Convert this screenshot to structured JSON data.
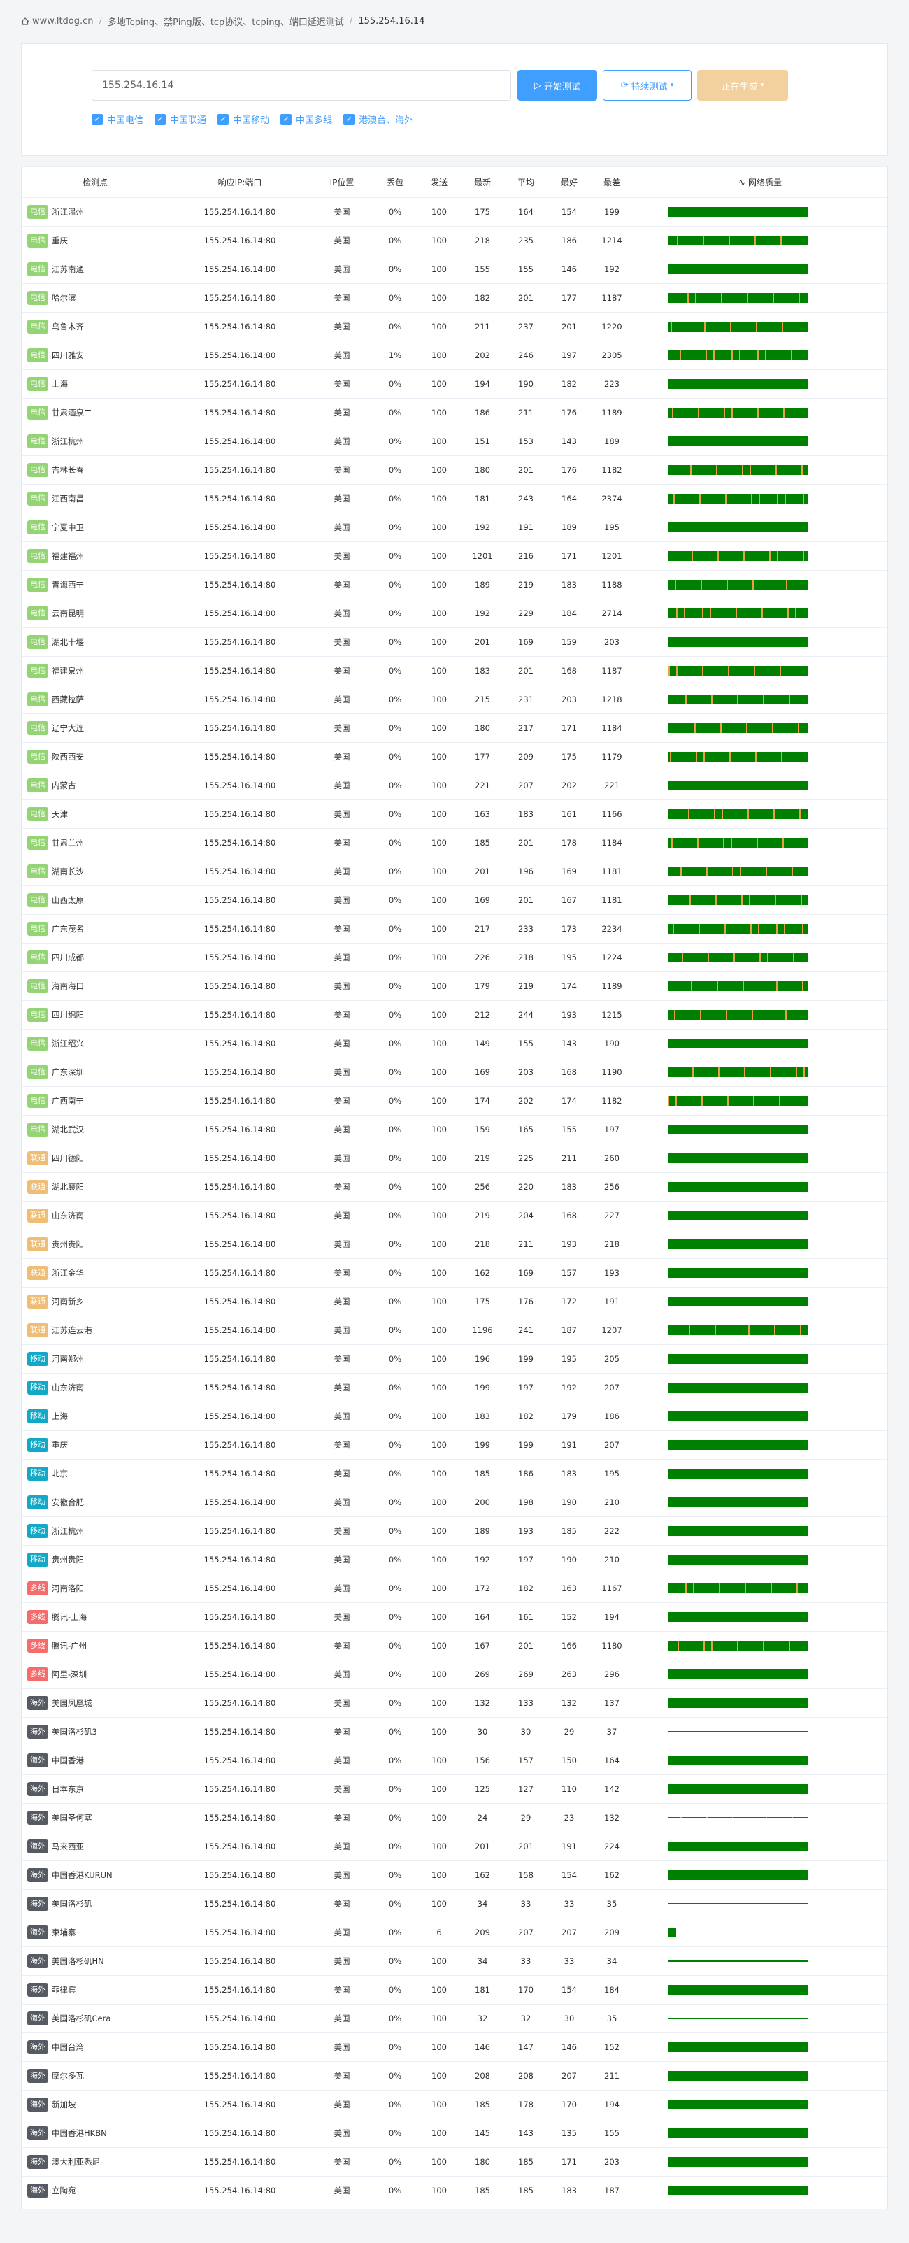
{
  "breadcrumb": {
    "site": "www.ltdog.cn",
    "section": "多地Tcping、禁Ping版、tcp协议、tcping、端口延迟测试",
    "target": "155.254.16.14"
  },
  "form": {
    "ip_value": "155.254.16.14",
    "start_label": "开始测试",
    "continuous_label": "持续测试",
    "generating_label": "正在生成",
    "checkboxes": [
      "中国电信",
      "中国联通",
      "中国移动",
      "中国多线",
      "港澳台、海外"
    ]
  },
  "table": {
    "headers": [
      "检测点",
      "响应IP:端口",
      "IP位置",
      "丢包",
      "发送",
      "最新",
      "平均",
      "最好",
      "最差",
      "网络质量"
    ],
    "rows": [
      [
        "电信",
        "浙江温州",
        "155.254.16.14:80",
        "美国",
        "0%",
        "100",
        "175",
        "164",
        "154",
        "199"
      ],
      [
        "电信",
        "重庆",
        "155.254.16.14:80",
        "美国",
        "0%",
        "100",
        "218",
        "235",
        "186",
        "1214"
      ],
      [
        "电信",
        "江苏南通",
        "155.254.16.14:80",
        "美国",
        "0%",
        "100",
        "155",
        "155",
        "146",
        "192"
      ],
      [
        "电信",
        "哈尔滨",
        "155.254.16.14:80",
        "美国",
        "0%",
        "100",
        "182",
        "201",
        "177",
        "1187"
      ],
      [
        "电信",
        "乌鲁木齐",
        "155.254.16.14:80",
        "美国",
        "0%",
        "100",
        "211",
        "237",
        "201",
        "1220"
      ],
      [
        "电信",
        "四川雅安",
        "155.254.16.14:80",
        "美国",
        "1%",
        "100",
        "202",
        "246",
        "197",
        "2305"
      ],
      [
        "电信",
        "上海",
        "155.254.16.14:80",
        "美国",
        "0%",
        "100",
        "194",
        "190",
        "182",
        "223"
      ],
      [
        "电信",
        "甘肃酒泉二",
        "155.254.16.14:80",
        "美国",
        "0%",
        "100",
        "186",
        "211",
        "176",
        "1189"
      ],
      [
        "电信",
        "浙江杭州",
        "155.254.16.14:80",
        "美国",
        "0%",
        "100",
        "151",
        "153",
        "143",
        "189"
      ],
      [
        "电信",
        "吉林长春",
        "155.254.16.14:80",
        "美国",
        "0%",
        "100",
        "180",
        "201",
        "176",
        "1182"
      ],
      [
        "电信",
        "江西南昌",
        "155.254.16.14:80",
        "美国",
        "0%",
        "100",
        "181",
        "243",
        "164",
        "2374"
      ],
      [
        "电信",
        "宁夏中卫",
        "155.254.16.14:80",
        "美国",
        "0%",
        "100",
        "192",
        "191",
        "189",
        "195"
      ],
      [
        "电信",
        "福建福州",
        "155.254.16.14:80",
        "美国",
        "0%",
        "100",
        "1201",
        "216",
        "171",
        "1201"
      ],
      [
        "电信",
        "青海西宁",
        "155.254.16.14:80",
        "美国",
        "0%",
        "100",
        "189",
        "219",
        "183",
        "1188"
      ],
      [
        "电信",
        "云南昆明",
        "155.254.16.14:80",
        "美国",
        "0%",
        "100",
        "192",
        "229",
        "184",
        "2714"
      ],
      [
        "电信",
        "湖北十堰",
        "155.254.16.14:80",
        "美国",
        "0%",
        "100",
        "201",
        "169",
        "159",
        "203"
      ],
      [
        "电信",
        "福建泉州",
        "155.254.16.14:80",
        "美国",
        "0%",
        "100",
        "183",
        "201",
        "168",
        "1187"
      ],
      [
        "电信",
        "西藏拉萨",
        "155.254.16.14:80",
        "美国",
        "0%",
        "100",
        "215",
        "231",
        "203",
        "1218"
      ],
      [
        "电信",
        "辽宁大连",
        "155.254.16.14:80",
        "美国",
        "0%",
        "100",
        "180",
        "217",
        "171",
        "1184"
      ],
      [
        "电信",
        "陕西西安",
        "155.254.16.14:80",
        "美国",
        "0%",
        "100",
        "177",
        "209",
        "175",
        "1179"
      ],
      [
        "电信",
        "内蒙古",
        "155.254.16.14:80",
        "美国",
        "0%",
        "100",
        "221",
        "207",
        "202",
        "221"
      ],
      [
        "电信",
        "天津",
        "155.254.16.14:80",
        "美国",
        "0%",
        "100",
        "163",
        "183",
        "161",
        "1166"
      ],
      [
        "电信",
        "甘肃兰州",
        "155.254.16.14:80",
        "美国",
        "0%",
        "100",
        "185",
        "201",
        "178",
        "1184"
      ],
      [
        "电信",
        "湖南长沙",
        "155.254.16.14:80",
        "美国",
        "0%",
        "100",
        "201",
        "196",
        "169",
        "1181"
      ],
      [
        "电信",
        "山西太原",
        "155.254.16.14:80",
        "美国",
        "0%",
        "100",
        "169",
        "201",
        "167",
        "1181"
      ],
      [
        "电信",
        "广东茂名",
        "155.254.16.14:80",
        "美国",
        "0%",
        "100",
        "217",
        "233",
        "173",
        "2234"
      ],
      [
        "电信",
        "四川成都",
        "155.254.16.14:80",
        "美国",
        "0%",
        "100",
        "226",
        "218",
        "195",
        "1224"
      ],
      [
        "电信",
        "海南海口",
        "155.254.16.14:80",
        "美国",
        "0%",
        "100",
        "179",
        "219",
        "174",
        "1189"
      ],
      [
        "电信",
        "四川绵阳",
        "155.254.16.14:80",
        "美国",
        "0%",
        "100",
        "212",
        "244",
        "193",
        "1215"
      ],
      [
        "电信",
        "浙江绍兴",
        "155.254.16.14:80",
        "美国",
        "0%",
        "100",
        "149",
        "155",
        "143",
        "190"
      ],
      [
        "电信",
        "广东深圳",
        "155.254.16.14:80",
        "美国",
        "0%",
        "100",
        "169",
        "203",
        "168",
        "1190"
      ],
      [
        "电信",
        "广西南宁",
        "155.254.16.14:80",
        "美国",
        "0%",
        "100",
        "174",
        "202",
        "174",
        "1182"
      ],
      [
        "电信",
        "湖北武汉",
        "155.254.16.14:80",
        "美国",
        "0%",
        "100",
        "159",
        "165",
        "155",
        "197"
      ],
      [
        "联通",
        "四川德阳",
        "155.254.16.14:80",
        "美国",
        "0%",
        "100",
        "219",
        "225",
        "211",
        "260"
      ],
      [
        "联通",
        "湖北襄阳",
        "155.254.16.14:80",
        "美国",
        "0%",
        "100",
        "256",
        "220",
        "183",
        "256"
      ],
      [
        "联通",
        "山东济南",
        "155.254.16.14:80",
        "美国",
        "0%",
        "100",
        "219",
        "204",
        "168",
        "227"
      ],
      [
        "联通",
        "贵州贵阳",
        "155.254.16.14:80",
        "美国",
        "0%",
        "100",
        "218",
        "211",
        "193",
        "218"
      ],
      [
        "联通",
        "浙江金华",
        "155.254.16.14:80",
        "美国",
        "0%",
        "100",
        "162",
        "169",
        "157",
        "193"
      ],
      [
        "联通",
        "河南新乡",
        "155.254.16.14:80",
        "美国",
        "0%",
        "100",
        "175",
        "176",
        "172",
        "191"
      ],
      [
        "联通",
        "江苏连云港",
        "155.254.16.14:80",
        "美国",
        "0%",
        "100",
        "1196",
        "241",
        "187",
        "1207"
      ],
      [
        "移动",
        "河南郑州",
        "155.254.16.14:80",
        "美国",
        "0%",
        "100",
        "196",
        "199",
        "195",
        "205"
      ],
      [
        "移动",
        "山东济南",
        "155.254.16.14:80",
        "美国",
        "0%",
        "100",
        "199",
        "197",
        "192",
        "207"
      ],
      [
        "移动",
        "上海",
        "155.254.16.14:80",
        "美国",
        "0%",
        "100",
        "183",
        "182",
        "179",
        "186"
      ],
      [
        "移动",
        "重庆",
        "155.254.16.14:80",
        "美国",
        "0%",
        "100",
        "199",
        "199",
        "191",
        "207"
      ],
      [
        "移动",
        "北京",
        "155.254.16.14:80",
        "美国",
        "0%",
        "100",
        "185",
        "186",
        "183",
        "195"
      ],
      [
        "移动",
        "安徽合肥",
        "155.254.16.14:80",
        "美国",
        "0%",
        "100",
        "200",
        "198",
        "190",
        "210"
      ],
      [
        "移动",
        "浙江杭州",
        "155.254.16.14:80",
        "美国",
        "0%",
        "100",
        "189",
        "193",
        "185",
        "222"
      ],
      [
        "移动",
        "贵州贵阳",
        "155.254.16.14:80",
        "美国",
        "0%",
        "100",
        "192",
        "197",
        "190",
        "210"
      ],
      [
        "多线",
        "河南洛阳",
        "155.254.16.14:80",
        "美国",
        "0%",
        "100",
        "172",
        "182",
        "163",
        "1167"
      ],
      [
        "多线",
        "腾讯-上海",
        "155.254.16.14:80",
        "美国",
        "0%",
        "100",
        "164",
        "161",
        "152",
        "194"
      ],
      [
        "多线",
        "腾讯-广州",
        "155.254.16.14:80",
        "美国",
        "0%",
        "100",
        "167",
        "201",
        "166",
        "1180"
      ],
      [
        "多线",
        "阿里-深圳",
        "155.254.16.14:80",
        "美国",
        "0%",
        "100",
        "269",
        "269",
        "263",
        "296"
      ],
      [
        "海外",
        "美国凤凰城",
        "155.254.16.14:80",
        "美国",
        "0%",
        "100",
        "132",
        "133",
        "132",
        "137"
      ],
      [
        "海外",
        "美国洛杉矶3",
        "155.254.16.14:80",
        "美国",
        "0%",
        "100",
        "30",
        "30",
        "29",
        "37"
      ],
      [
        "海外",
        "中国香港",
        "155.254.16.14:80",
        "美国",
        "0%",
        "100",
        "156",
        "157",
        "150",
        "164"
      ],
      [
        "海外",
        "日本东京",
        "155.254.16.14:80",
        "美国",
        "0%",
        "100",
        "125",
        "127",
        "110",
        "142"
      ],
      [
        "海外",
        "美国圣何塞",
        "155.254.16.14:80",
        "美国",
        "0%",
        "100",
        "24",
        "29",
        "23",
        "132"
      ],
      [
        "海外",
        "马来西亚",
        "155.254.16.14:80",
        "美国",
        "0%",
        "100",
        "201",
        "201",
        "191",
        "224"
      ],
      [
        "海外",
        "中国香港KURUN",
        "155.254.16.14:80",
        "美国",
        "0%",
        "100",
        "162",
        "158",
        "154",
        "162"
      ],
      [
        "海外",
        "美国洛杉矶",
        "155.254.16.14:80",
        "美国",
        "0%",
        "100",
        "34",
        "33",
        "33",
        "35"
      ],
      [
        "海外",
        "柬埔寨",
        "155.254.16.14:80",
        "美国",
        "0%",
        "6",
        "209",
        "207",
        "207",
        "209"
      ],
      [
        "海外",
        "美国洛杉矶HN",
        "155.254.16.14:80",
        "美国",
        "0%",
        "100",
        "34",
        "33",
        "33",
        "34"
      ],
      [
        "海外",
        "菲律宾",
        "155.254.16.14:80",
        "美国",
        "0%",
        "100",
        "181",
        "170",
        "154",
        "184"
      ],
      [
        "海外",
        "美国洛杉矶Cera",
        "155.254.16.14:80",
        "美国",
        "0%",
        "100",
        "32",
        "32",
        "30",
        "35"
      ],
      [
        "海外",
        "中国台湾",
        "155.254.16.14:80",
        "美国",
        "0%",
        "100",
        "146",
        "147",
        "146",
        "152"
      ],
      [
        "海外",
        "摩尔多瓦",
        "155.254.16.14:80",
        "美国",
        "0%",
        "100",
        "208",
        "208",
        "207",
        "211"
      ],
      [
        "海外",
        "新加坡",
        "155.254.16.14:80",
        "美国",
        "0%",
        "100",
        "185",
        "178",
        "170",
        "194"
      ],
      [
        "海外",
        "中国香港HKBN",
        "155.254.16.14:80",
        "美国",
        "0%",
        "100",
        "145",
        "143",
        "135",
        "155"
      ],
      [
        "海外",
        "澳大利亚悉尼",
        "155.254.16.14:80",
        "美国",
        "0%",
        "100",
        "180",
        "185",
        "171",
        "203"
      ],
      [
        "海外",
        "立陶宛",
        "155.254.16.14:80",
        "美国",
        "0%",
        "100",
        "185",
        "185",
        "183",
        "187"
      ]
    ]
  },
  "colors": {
    "电信": "#95d475",
    "联通": "#eebe77",
    "移动": "#13a8c6",
    "多线": "#f56c6c",
    "海外": "#555a63",
    "quality_bar": "#008000",
    "spike": "#e6a23c"
  }
}
